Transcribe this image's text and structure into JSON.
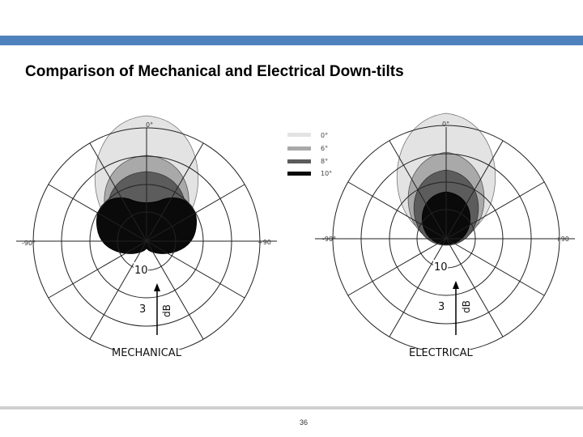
{
  "slide": {
    "title": "Comparison of Mechanical and Electrical Down-tilts",
    "page_number": "36"
  },
  "legend": {
    "entries": [
      {
        "label": "0°",
        "color": "#e3e3e3"
      },
      {
        "label": "6°",
        "color": "#a9a9a9"
      },
      {
        "label": "8°",
        "color": "#5c5c5c"
      },
      {
        "label": "10°",
        "color": "#0a0a0a"
      }
    ]
  },
  "plots": {
    "mechanical": {
      "top_label": "0°",
      "left_label": "-90°",
      "right_label": "+90",
      "ring_label_outer": "10",
      "ring_label_inner": "3",
      "unit_label": "dB",
      "caption": "MECHANICAL"
    },
    "electrical": {
      "top_label": "0°",
      "left_label": "-90°",
      "right_label": "+90",
      "ring_label_outer": "10",
      "ring_label_inner": "3",
      "unit_label": "dB",
      "caption": "ELECTRICAL"
    }
  }
}
